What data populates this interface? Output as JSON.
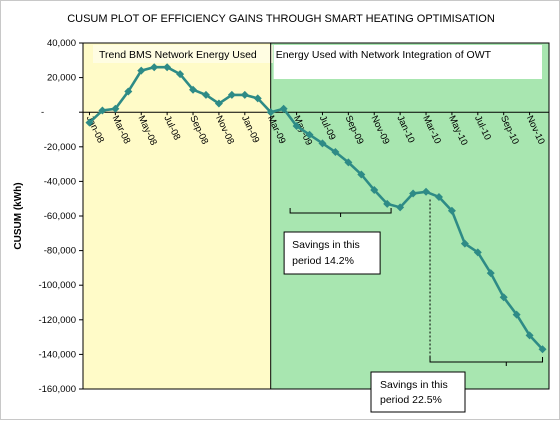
{
  "chart_data": {
    "type": "line",
    "title": "CUSUM PLOT OF EFFICIENCY GAINS THROUGH SMART HEATING OPTIMISATION",
    "xlabel": "",
    "ylabel": "CUSUM (kWh)",
    "ylim": [
      -160000,
      40000
    ],
    "y_ticks": [
      40000,
      20000,
      0,
      -20000,
      -40000,
      -60000,
      -80000,
      -100000,
      -120000,
      -140000,
      -160000
    ],
    "y_tick_labels": [
      "40,000",
      "20,000",
      "-",
      "-20,000",
      "-40,000",
      "-60,000",
      "-80,000",
      "-100,000",
      "-120,000",
      "-140,000",
      "-160,000"
    ],
    "x_tick_labels": [
      "Jan-08",
      "Mar-08",
      "May-08",
      "Jul-08",
      "Sep-08",
      "Nov-08",
      "Jan-09",
      "Mar-09",
      "May-09",
      "Jul-09",
      "Sep-09",
      "Nov-09",
      "Jan-10",
      "Mar-10",
      "May-10",
      "Jul-10",
      "Sep-10",
      "Nov-10"
    ],
    "x": [
      "Jan-08",
      "Feb-08",
      "Mar-08",
      "Apr-08",
      "May-08",
      "Jun-08",
      "Jul-08",
      "Aug-08",
      "Sep-08",
      "Oct-08",
      "Nov-08",
      "Dec-08",
      "Jan-09",
      "Feb-09",
      "Mar-09",
      "Apr-09",
      "May-09",
      "Jun-09",
      "Jul-09",
      "Aug-09",
      "Sep-09",
      "Oct-09",
      "Nov-09",
      "Dec-09",
      "Jan-10",
      "Feb-10",
      "Mar-10",
      "Apr-10",
      "May-10",
      "Jun-10",
      "Jul-10",
      "Aug-10",
      "Sep-10",
      "Oct-10",
      "Nov-10",
      "Dec-10"
    ],
    "series": [
      {
        "values": [
          -6000,
          1000,
          2000,
          12000,
          24000,
          26000,
          26000,
          22000,
          13000,
          10000,
          5000,
          10000,
          10000,
          8000,
          0,
          2000,
          -8000,
          -13000,
          -18000,
          -23000,
          -29000,
          -36000,
          -45000,
          -53000,
          -55000,
          -47000,
          -46000,
          -49000,
          -57000,
          -76000,
          -81000,
          -93000,
          -107000,
          -117000,
          -129000,
          -137000
        ],
        "color": "#2e8b86"
      }
    ],
    "regions": [
      {
        "label": "Trend BMS Network Energy Used",
        "from": "Jan-08",
        "to": "Mar-09",
        "color": "#fffbc8"
      },
      {
        "label": "Energy Used with Network Integration of OWT",
        "from": "Mar-09",
        "to": "Dec-10",
        "color": "#a8e6b0"
      }
    ],
    "annotations": [
      {
        "text": [
          "Savings in this",
          "period 14.2%"
        ],
        "from": "May-09",
        "to": "Dec-09"
      },
      {
        "text": [
          "Savings in this",
          "period 22.5%"
        ],
        "from": "Mar-10",
        "to": "Dec-10"
      }
    ],
    "grid": false,
    "legend": "none"
  }
}
